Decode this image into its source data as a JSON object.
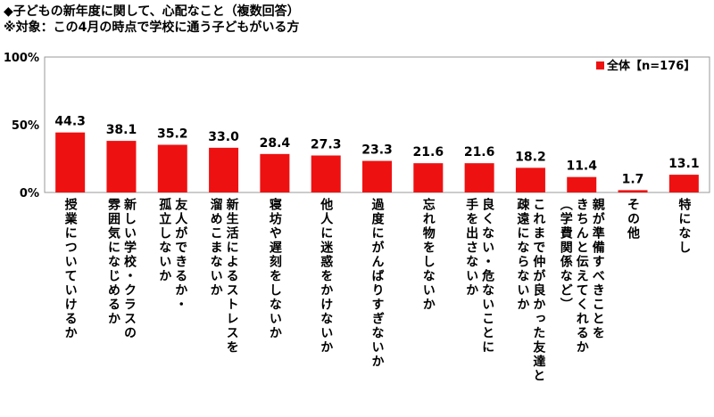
{
  "header": {
    "title": "◆子どもの新年度に関して、心配なこと（複数回答）",
    "subtitle": "※対象：この4月の時点で学校に通う子どもがいる方"
  },
  "chart_data": {
    "type": "bar",
    "categories": [
      "授業についていけるか",
      "新しい学校・クラスの\n雰囲気になじめるか",
      "友人ができるか・\n孤立しないか",
      "新生活によるストレスを\n溜めこまないか",
      "寝坊や遅刻をしないか",
      "他人に迷惑をかけないか",
      "過度にがんばりすぎないか",
      "忘れ物をしないか",
      "良くない・危ないことに\n手を出さないか",
      "これまで仲が良かった友達と\n疎遠にならないか",
      "親が準備すべきことを\nきちんと伝えてくれるか\n（学費関係など）",
      "その他",
      "特になし"
    ],
    "series": [
      {
        "name": "全体【n=176】",
        "values": [
          44.3,
          38.1,
          35.2,
          33.0,
          28.4,
          27.3,
          23.3,
          21.6,
          21.6,
          18.2,
          11.4,
          1.7,
          13.1
        ],
        "labels": [
          "44.3",
          "38.1",
          "35.2",
          "33.0",
          "28.4",
          "27.3",
          "23.3",
          "21.6",
          "21.6",
          "18.2",
          "11.4",
          "1.7",
          "13.1"
        ]
      }
    ],
    "yticks": [
      "100%",
      "50%",
      "0%"
    ],
    "ylim": [
      0,
      100
    ],
    "legend_position": "top-right",
    "bar_color": "#ee1111",
    "grid": false
  }
}
